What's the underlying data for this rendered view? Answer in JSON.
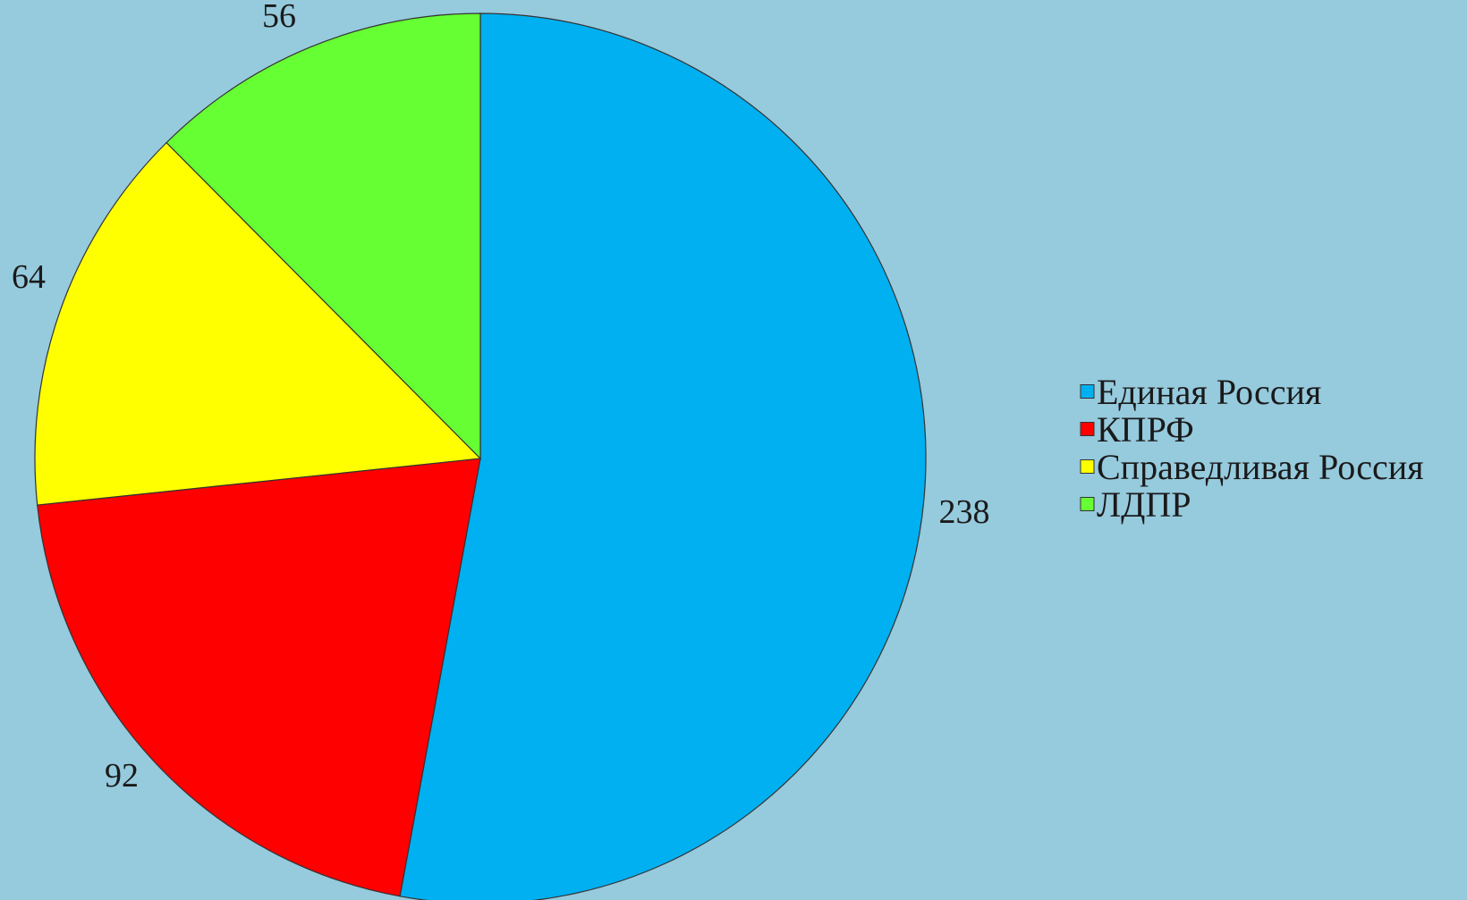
{
  "chart_data": {
    "type": "pie",
    "title": "",
    "categories": [
      "Единая Россия",
      "КПРФ",
      "Справедливая Россия",
      "ЛДПР"
    ],
    "values": [
      238,
      92,
      64,
      56
    ],
    "colors": [
      "#00b0f0",
      "#ff0000",
      "#ffff00",
      "#66ff33"
    ],
    "value_labels": [
      "238",
      "92",
      "64",
      "56"
    ],
    "legend": {
      "position": "right",
      "entries": [
        "Единая Россия",
        "КПРФ",
        "Справедливая Россия",
        "ЛДПР"
      ]
    },
    "start_angle_deg": 0,
    "direction": "clockwise"
  },
  "background_color": "#96cadd",
  "slice_stroke_color": "#333333"
}
